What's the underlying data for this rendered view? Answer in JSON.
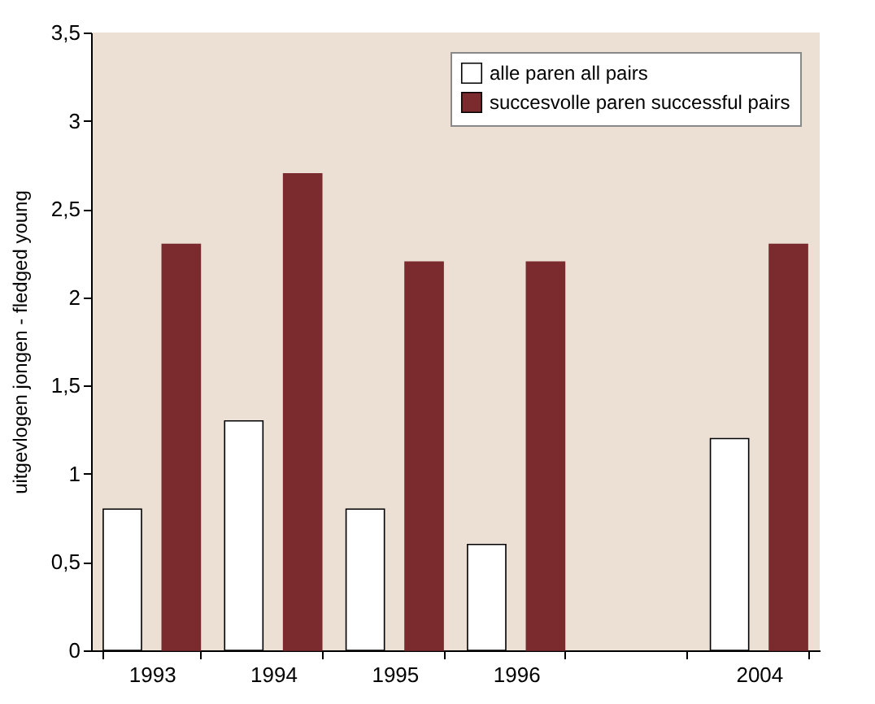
{
  "chart_data": {
    "type": "bar",
    "ylabel": "uitgevlogen jongen - fledged young",
    "categories": [
      "1993",
      "1994",
      "1995",
      "1996",
      null,
      "2004"
    ],
    "series": [
      {
        "name": "alle paren all pairs",
        "color": "#ffffff",
        "values": [
          0.8,
          1.3,
          0.8,
          0.6,
          null,
          1.2
        ]
      },
      {
        "name": "succesvolle paren successful pairs",
        "color": "#7b2b2e",
        "values": [
          2.3,
          2.7,
          2.2,
          2.2,
          null,
          2.3
        ]
      }
    ],
    "ylim": [
      0,
      3.5
    ],
    "yticks": [
      0,
      {
        "value": 0.5,
        "label": "0,5"
      },
      1,
      {
        "value": 1.5,
        "label": "1,5"
      },
      2,
      {
        "value": 2.5,
        "label": "2,5"
      },
      3,
      {
        "value": 3.5,
        "label": "3,5"
      }
    ],
    "grid": false,
    "legend": "top right"
  }
}
